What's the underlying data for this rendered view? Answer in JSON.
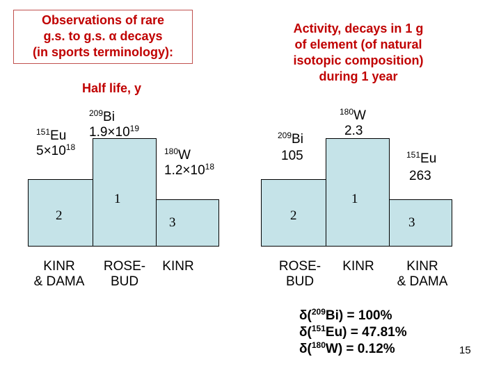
{
  "title_box": {
    "line1": "Observations of rare",
    "line2": "g.s. to g.s. α decays",
    "line3": "(in sports terminology):"
  },
  "title_right": {
    "line1": "Activity, decays in 1 g",
    "line2": "of element (of natural",
    "line3": "isotopic composition)",
    "line4": "during 1 year"
  },
  "left_chart": {
    "heading": "Half life, y",
    "bi": {
      "mass": "209",
      "symbol": "Bi",
      "value_base": "1.9×10",
      "value_exp": "19",
      "rank": "1",
      "lab": [
        "ROSE-",
        "BUD"
      ]
    },
    "eu": {
      "mass": "151",
      "symbol": "Eu",
      "value_base": "5×10",
      "value_exp": "18",
      "rank": "2",
      "lab": [
        "KINR",
        "& DAMA"
      ]
    },
    "w": {
      "mass": "180",
      "symbol": "W",
      "value_base": "1.2×10",
      "value_exp": "18",
      "rank": "3",
      "lab": [
        "KINR"
      ]
    }
  },
  "right_chart": {
    "w": {
      "mass": "180",
      "symbol": "W",
      "value": "2.3",
      "rank": "1",
      "lab": [
        "KINR"
      ]
    },
    "bi": {
      "mass": "209",
      "symbol": "Bi",
      "value": "105",
      "rank": "2",
      "lab": [
        "ROSE-",
        "BUD"
      ]
    },
    "eu": {
      "mass": "151",
      "symbol": "Eu",
      "value": "263",
      "rank": "3",
      "lab": [
        "KINR",
        "& DAMA"
      ]
    }
  },
  "abundances": [
    {
      "prefix": "δ(",
      "mass": "209",
      "rest": "Bi) = 100%"
    },
    {
      "prefix": "δ(",
      "mass": "151",
      "rest": "Eu) = 47.81%"
    },
    {
      "prefix": "δ(",
      "mass": "180",
      "rest": "W) = 0.12%"
    }
  ],
  "page_number": "15"
}
